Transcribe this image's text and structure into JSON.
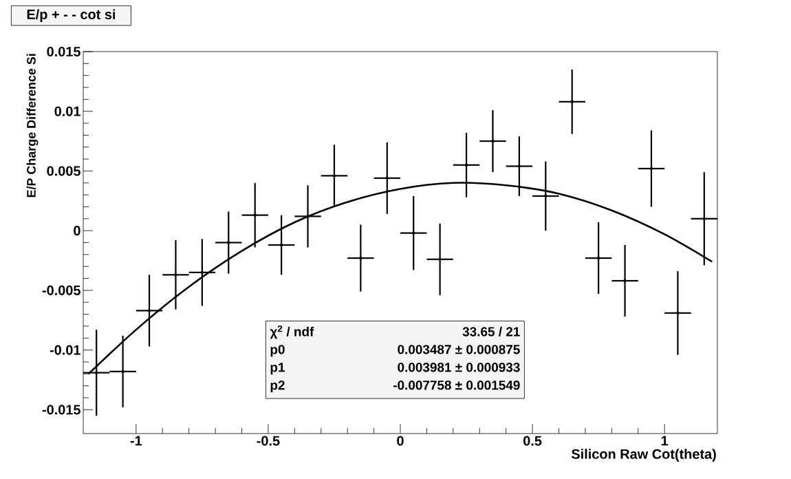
{
  "chart_data": {
    "type": "scatter",
    "title": "E/p + - - cot si",
    "xlabel": "Silicon Raw  Cot(theta)",
    "ylabel": "E/P Charge Difference Si",
    "xlim": [
      -1.2,
      1.2
    ],
    "ylim": [
      -0.017,
      0.015
    ],
    "xticks": [
      -1,
      -0.5,
      0,
      0.5,
      1
    ],
    "yticks": [
      -0.015,
      -0.01,
      -0.005,
      0,
      0.005,
      0.01,
      0.015
    ],
    "series": [
      {
        "type": "scatter",
        "color": "#000000",
        "x": [
          -1.15,
          -1.05,
          -0.95,
          -0.85,
          -0.75,
          -0.65,
          -0.55,
          -0.45,
          -0.35,
          -0.25,
          -0.15,
          -0.05,
          0.05,
          0.15,
          0.25,
          0.35,
          0.45,
          0.55,
          0.65,
          0.75,
          0.85,
          0.95,
          1.05,
          1.15
        ],
        "values": [
          -0.0119,
          -0.0118,
          -0.0067,
          -0.0037,
          -0.0035,
          -0.001,
          0.0013,
          -0.0012,
          0.0012,
          0.0046,
          -0.0023,
          0.0044,
          -0.0002,
          -0.0024,
          0.0055,
          0.0075,
          0.0054,
          0.0029,
          0.0108,
          -0.0023,
          -0.0042,
          0.0052,
          -0.0069,
          0.001
        ],
        "errors": [
          0.0036,
          0.003,
          0.003,
          0.0029,
          0.0028,
          0.0026,
          0.0027,
          0.0025,
          0.0026,
          0.0026,
          0.0028,
          0.003,
          0.0031,
          0.003,
          0.0027,
          0.0026,
          0.0025,
          0.0029,
          0.0027,
          0.003,
          0.003,
          0.0032,
          0.0035,
          0.0039
        ],
        "xerrors": [
          0.05,
          0.05,
          0.05,
          0.05,
          0.05,
          0.05,
          0.05,
          0.05,
          0.05,
          0.05,
          0.05,
          0.05,
          0.05,
          0.05,
          0.05,
          0.05,
          0.05,
          0.05,
          0.05,
          0.05,
          0.05,
          0.05,
          0.05,
          0.05
        ]
      },
      {
        "type": "line",
        "color": "#000000",
        "x": [
          -1.18,
          -1.0,
          -0.8,
          -0.6,
          -0.4,
          -0.2,
          0,
          0.2,
          0.4,
          0.6,
          0.8,
          1.0,
          1.18
        ],
        "values": [
          -0.012,
          -0.0083,
          -0.0047,
          -0.0017,
          0.0007,
          0.0024,
          0.0035,
          0.004,
          0.0038,
          0.0031,
          0.0017,
          -0.0003,
          -0.0026
        ]
      }
    ],
    "annotations": [
      "χ$^{2}$ / ndf",
      "33.65 / 21",
      "p0",
      "0.003487 ± 0.000875",
      "p1",
      "0.003981 ± 0.000933",
      "p2",
      "-0.007758 ± 0.001549"
    ]
  }
}
